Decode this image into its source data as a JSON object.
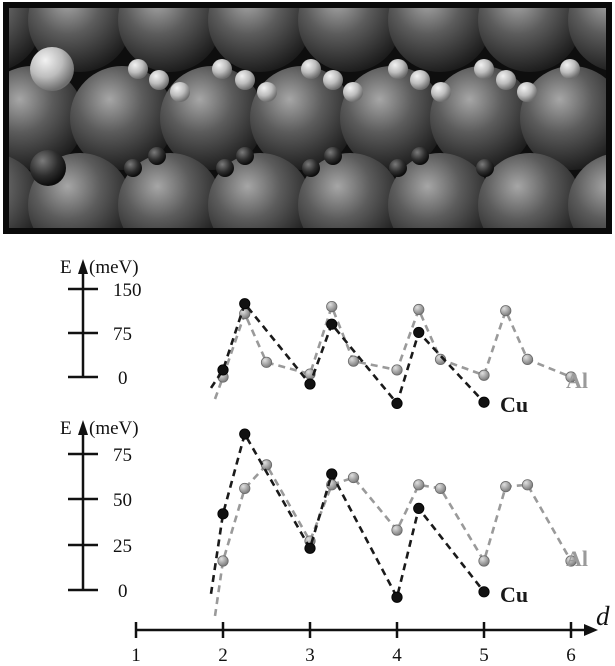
{
  "chart_data": [
    {
      "type": "line",
      "panel": "upper",
      "ylabel": "E",
      "yunit": "(meV)",
      "yticks": [
        0,
        75,
        150
      ],
      "ylim": [
        0,
        150
      ],
      "x_axis_label": "d",
      "series": [
        {
          "name": "Al",
          "color": "#9a9a9a",
          "x": [
            2.0,
            2.25,
            2.5,
            3.0,
            3.25,
            3.5,
            4.0,
            4.25,
            4.5,
            5.0,
            5.25,
            5.5,
            6.0
          ],
          "y": [
            0,
            108,
            25,
            5,
            120,
            27,
            12,
            115,
            30,
            3,
            113,
            30,
            0
          ]
        },
        {
          "name": "Cu",
          "color": "#1a1a1a",
          "x": [
            2.0,
            2.25,
            3.0,
            3.25,
            4.0,
            4.25,
            5.0
          ],
          "y": [
            12,
            125,
            -12,
            90,
            -45,
            76,
            -43
          ]
        }
      ]
    },
    {
      "type": "line",
      "panel": "lower",
      "ylabel": "E",
      "yunit": "(meV)",
      "yticks": [
        0,
        25,
        50,
        75
      ],
      "ylim": [
        0,
        75
      ],
      "x_axis_label": "d",
      "series": [
        {
          "name": "Al",
          "color": "#9a9a9a",
          "x": [
            2.0,
            2.25,
            2.5,
            3.0,
            3.25,
            3.5,
            4.0,
            4.25,
            4.5,
            5.0,
            5.25,
            5.5,
            6.0
          ],
          "y": [
            16,
            56,
            69,
            27,
            58,
            62,
            33,
            58,
            56,
            16,
            57,
            58,
            16
          ]
        },
        {
          "name": "Cu",
          "color": "#1a1a1a",
          "x": [
            2.0,
            2.25,
            3.0,
            3.25,
            4.0,
            4.25,
            5.0
          ],
          "y": [
            42,
            86,
            23,
            64,
            -4,
            45,
            -1
          ]
        }
      ]
    }
  ],
  "x_axis": {
    "label": "d",
    "ticks": [
      "1",
      "2",
      "3",
      "4",
      "5",
      "6"
    ]
  },
  "panels": [
    {
      "ylabel": "E",
      "yunit": "(meV)",
      "tick_labels": [
        "150",
        "75",
        "0"
      ]
    },
    {
      "ylabel": "E",
      "yunit": "(meV)",
      "tick_labels": [
        "75",
        "50",
        "25",
        "0"
      ]
    }
  ],
  "series_labels": {
    "al": "Al",
    "cu": "Cu"
  },
  "colors": {
    "al": "#9a9a9a",
    "cu": "#1a1a1a",
    "image_frame": "#0a0a0a"
  }
}
